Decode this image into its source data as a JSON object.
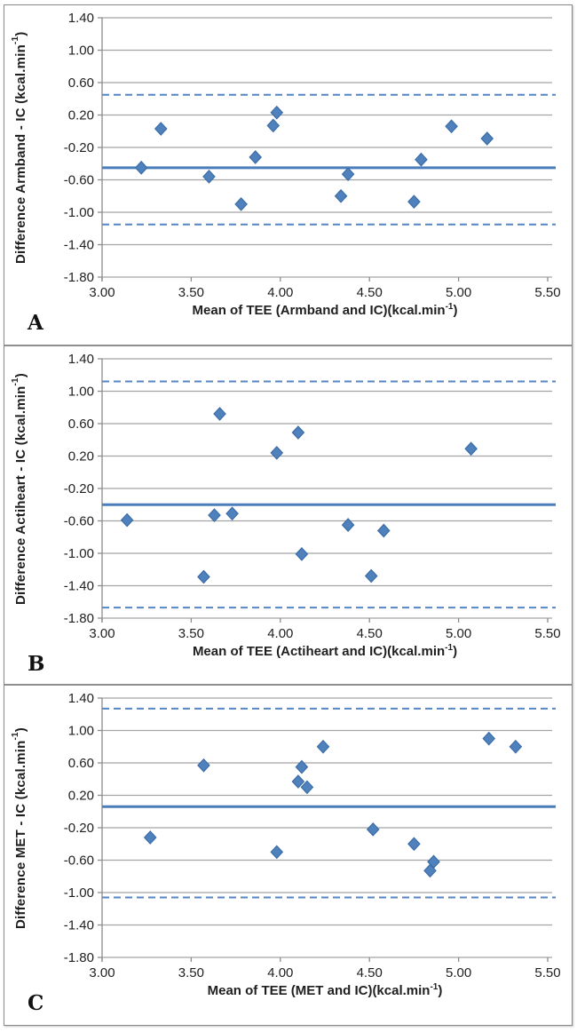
{
  "figure": {
    "description": "Three stacked Bland-Altman scatter plots comparing TEE measurement devices against indirect calorimetry (IC)",
    "border_color": "#8f8f8f",
    "background": "#ffffff"
  },
  "colors": {
    "marker_fill": "#4f81bd",
    "marker_stroke": "#3c6da8",
    "mean_line": "#4a7ebb",
    "loa_line": "#5585c2",
    "gridline": "#a4a4a4",
    "axis_line": "#8c8c8c",
    "text": "#1f1f1f"
  },
  "chart_data": [
    {
      "type": "scatter",
      "panel_letter": "A",
      "xlabel": {
        "main": "Mean of TEE (Armband and IC)(kcal.min",
        "sup": "-1",
        "end": ")"
      },
      "ylabel": {
        "main": "Difference Armband - IC (kcal.min",
        "sup": "-1",
        "end": ")"
      },
      "xlim": [
        3.0,
        5.5
      ],
      "ylim": [
        -1.8,
        1.4
      ],
      "x_ticks": [
        "3.00",
        "3.50",
        "4.00",
        "4.50",
        "5.00",
        "5.50"
      ],
      "y_ticks": [
        "1.40",
        "1.00",
        "0.60",
        "0.20",
        "-0.20",
        "-0.60",
        "-1.00",
        "-1.40",
        "-1.80"
      ],
      "points": [
        [
          3.22,
          -0.45
        ],
        [
          3.33,
          0.03
        ],
        [
          3.6,
          -0.56
        ],
        [
          3.78,
          -0.9
        ],
        [
          3.86,
          -0.32
        ],
        [
          3.96,
          0.07
        ],
        [
          3.98,
          0.23
        ],
        [
          4.34,
          -0.8
        ],
        [
          4.38,
          -0.53
        ],
        [
          4.75,
          -0.87
        ],
        [
          4.79,
          -0.35
        ],
        [
          4.96,
          0.06
        ],
        [
          5.16,
          -0.09
        ]
      ],
      "mean_bias": -0.45,
      "upper_loa": 0.45,
      "lower_loa": -1.15,
      "grid": true,
      "legend": "none"
    },
    {
      "type": "scatter",
      "panel_letter": "B",
      "xlabel": {
        "main": "Mean of TEE (Actiheart and IC)(kcal.min",
        "sup": "-1",
        "end": ")"
      },
      "ylabel": {
        "main": "Difference Actiheart - IC (kcal.min",
        "sup": "-1",
        "end": ")"
      },
      "xlim": [
        3.0,
        5.5
      ],
      "ylim": [
        -1.8,
        1.4
      ],
      "x_ticks": [
        "3.00",
        "3.50",
        "4.00",
        "4.50",
        "5.00",
        "5.50"
      ],
      "y_ticks": [
        "1.40",
        "1.00",
        "0.60",
        "0.20",
        "-0.20",
        "-0.60",
        "-1.00",
        "-1.40",
        "-1.80"
      ],
      "points": [
        [
          3.14,
          -0.59
        ],
        [
          3.57,
          -1.29
        ],
        [
          3.63,
          -0.53
        ],
        [
          3.66,
          0.72
        ],
        [
          3.73,
          -0.51
        ],
        [
          3.98,
          0.24
        ],
        [
          4.1,
          0.49
        ],
        [
          4.12,
          -1.01
        ],
        [
          4.38,
          -0.65
        ],
        [
          4.51,
          -1.28
        ],
        [
          4.58,
          -0.72
        ],
        [
          5.07,
          0.29
        ]
      ],
      "mean_bias": -0.4,
      "upper_loa": 1.12,
      "lower_loa": -1.67,
      "grid": true,
      "legend": "none"
    },
    {
      "type": "scatter",
      "panel_letter": "C",
      "xlabel": {
        "main": "Mean of TEE (MET and IC)(kcal.min",
        "sup": "-1",
        "end": ")"
      },
      "ylabel": {
        "main": "Difference MET - IC (kcal.min",
        "sup": "-1",
        "end": ")"
      },
      "xlim": [
        3.0,
        5.5
      ],
      "ylim": [
        -1.8,
        1.4
      ],
      "x_ticks": [
        "3.00",
        "3.50",
        "4.00",
        "4.50",
        "5.00",
        "5.50"
      ],
      "y_ticks": [
        "1.40",
        "1.00",
        "0.60",
        "0.20",
        "-0.20",
        "-0.60",
        "-1.00",
        "-1.40",
        "-1.80"
      ],
      "points": [
        [
          3.27,
          -0.32
        ],
        [
          3.57,
          0.57
        ],
        [
          3.98,
          -0.5
        ],
        [
          4.1,
          0.37
        ],
        [
          4.12,
          0.55
        ],
        [
          4.15,
          0.3
        ],
        [
          4.24,
          0.8
        ],
        [
          4.52,
          -0.22
        ],
        [
          4.75,
          -0.4
        ],
        [
          4.84,
          -0.73
        ],
        [
          4.86,
          -0.62
        ],
        [
          5.17,
          0.9
        ],
        [
          5.32,
          0.8
        ]
      ],
      "mean_bias": 0.06,
      "upper_loa": 1.27,
      "lower_loa": -1.06,
      "grid": true,
      "legend": "none"
    }
  ]
}
